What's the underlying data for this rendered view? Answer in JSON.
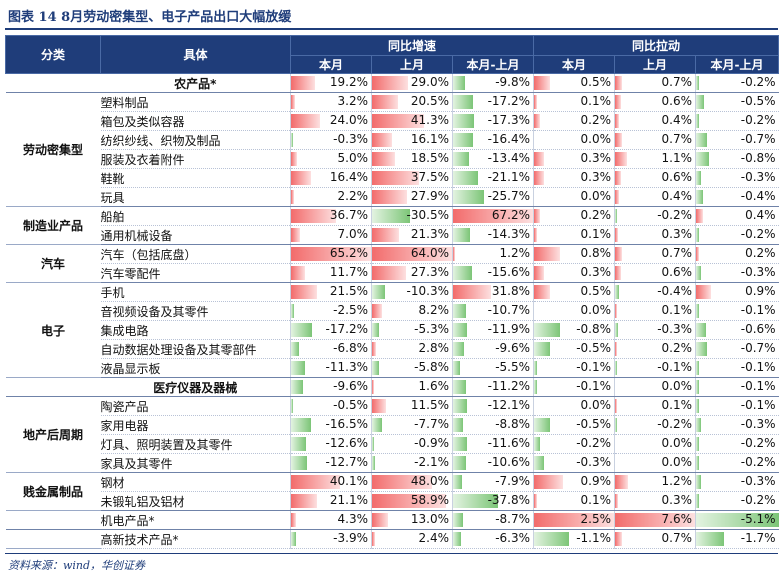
{
  "title": "图表 14   8月劳动密集型、电子产品出口大幅放缓",
  "source": "资料来源：wind，华创证券",
  "headers": {
    "category": "分类",
    "item": "具体",
    "group_growth": "同比增速",
    "group_pull": "同比拉动",
    "sub": [
      "本月",
      "上月",
      "本月-上月",
      "本月",
      "上月",
      "本月-上月"
    ]
  },
  "colors": {
    "header_bg": "#1f3d7a",
    "positive_bar": "#f26b6b",
    "negative_bar": "#7cc577"
  },
  "rows": [
    {
      "cat": "",
      "item": "农产品*",
      "bold": true,
      "v": [
        "19.2%",
        "29.0%",
        "-9.8%",
        "0.5%",
        "0.7%",
        "-0.2%"
      ],
      "n": [
        19.2,
        29.0,
        -9.8,
        0.5,
        0.7,
        -0.2
      ]
    },
    {
      "cat": "劳动密集型",
      "item": "塑料制品",
      "v": [
        "3.2%",
        "20.5%",
        "-17.2%",
        "0.1%",
        "0.6%",
        "-0.5%"
      ],
      "n": [
        3.2,
        20.5,
        -17.2,
        0.1,
        0.6,
        -0.5
      ]
    },
    {
      "cat": "",
      "item": "箱包及类似容器",
      "v": [
        "24.0%",
        "41.3%",
        "-17.3%",
        "0.2%",
        "0.4%",
        "-0.2%"
      ],
      "n": [
        24.0,
        41.3,
        -17.3,
        0.2,
        0.4,
        -0.2
      ]
    },
    {
      "cat": "",
      "item": "纺织纱线、织物及制品",
      "v": [
        "-0.3%",
        "16.1%",
        "-16.4%",
        "0.0%",
        "0.7%",
        "-0.7%"
      ],
      "n": [
        -0.3,
        16.1,
        -16.4,
        0.0,
        0.7,
        -0.7
      ]
    },
    {
      "cat": "",
      "item": "服装及衣着附件",
      "v": [
        "5.0%",
        "18.5%",
        "-13.4%",
        "0.3%",
        "1.1%",
        "-0.8%"
      ],
      "n": [
        5.0,
        18.5,
        -13.4,
        0.3,
        1.1,
        -0.8
      ]
    },
    {
      "cat": "",
      "item": "鞋靴",
      "v": [
        "16.4%",
        "37.5%",
        "-21.1%",
        "0.3%",
        "0.6%",
        "-0.3%"
      ],
      "n": [
        16.4,
        37.5,
        -21.1,
        0.3,
        0.6,
        -0.3
      ]
    },
    {
      "cat": "",
      "item": "玩具",
      "v": [
        "2.2%",
        "27.9%",
        "-25.7%",
        "0.0%",
        "0.4%",
        "-0.4%"
      ],
      "n": [
        2.2,
        27.9,
        -25.7,
        0.0,
        0.4,
        -0.4
      ]
    },
    {
      "cat": "制造业产品",
      "item": "船舶",
      "v": [
        "36.7%",
        "-30.5%",
        "67.2%",
        "0.2%",
        "-0.2%",
        "0.4%"
      ],
      "n": [
        36.7,
        -30.5,
        67.2,
        0.2,
        -0.2,
        0.4
      ]
    },
    {
      "cat": "",
      "item": "通用机械设备",
      "v": [
        "7.0%",
        "21.3%",
        "-14.3%",
        "0.1%",
        "0.3%",
        "-0.2%"
      ],
      "n": [
        7.0,
        21.3,
        -14.3,
        0.1,
        0.3,
        -0.2
      ]
    },
    {
      "cat": "汽车",
      "item": "汽车（包括底盘）",
      "v": [
        "65.2%",
        "64.0%",
        "1.2%",
        "0.8%",
        "0.7%",
        "0.2%"
      ],
      "n": [
        65.2,
        64.0,
        1.2,
        0.8,
        0.7,
        0.2
      ]
    },
    {
      "cat": "",
      "item": "汽车零配件",
      "v": [
        "11.7%",
        "27.3%",
        "-15.6%",
        "0.3%",
        "0.6%",
        "-0.3%"
      ],
      "n": [
        11.7,
        27.3,
        -15.6,
        0.3,
        0.6,
        -0.3
      ]
    },
    {
      "cat": "电子",
      "item": "手机",
      "v": [
        "21.5%",
        "-10.3%",
        "31.8%",
        "0.5%",
        "-0.4%",
        "0.9%"
      ],
      "n": [
        21.5,
        -10.3,
        31.8,
        0.5,
        -0.4,
        0.9
      ]
    },
    {
      "cat": "",
      "item": "音视频设备及其零件",
      "v": [
        "-2.5%",
        "8.2%",
        "-10.7%",
        "0.0%",
        "0.1%",
        "-0.1%"
      ],
      "n": [
        -2.5,
        8.2,
        -10.7,
        0.0,
        0.1,
        -0.1
      ]
    },
    {
      "cat": "",
      "item": "集成电路",
      "v": [
        "-17.2%",
        "-5.3%",
        "-11.9%",
        "-0.8%",
        "-0.3%",
        "-0.6%"
      ],
      "n": [
        -17.2,
        -5.3,
        -11.9,
        -0.8,
        -0.3,
        -0.6
      ]
    },
    {
      "cat": "",
      "item": "自动数据处理设备及其零部件",
      "v": [
        "-6.8%",
        "2.8%",
        "-9.6%",
        "-0.5%",
        "0.2%",
        "-0.7%"
      ],
      "n": [
        -6.8,
        2.8,
        -9.6,
        -0.5,
        0.2,
        -0.7
      ]
    },
    {
      "cat": "",
      "item": "液晶显示板",
      "v": [
        "-11.3%",
        "-5.8%",
        "-5.5%",
        "-0.1%",
        "-0.1%",
        "-0.1%"
      ],
      "n": [
        -11.3,
        -5.8,
        -5.5,
        -0.1,
        -0.1,
        -0.1
      ]
    },
    {
      "cat": "",
      "item": "医疗仪器及器械",
      "bold": true,
      "v": [
        "-9.6%",
        "1.6%",
        "-11.2%",
        "-0.1%",
        "0.0%",
        "-0.1%"
      ],
      "n": [
        -9.6,
        1.6,
        -11.2,
        -0.1,
        0.0,
        -0.1
      ]
    },
    {
      "cat": "地产后周期",
      "item": "陶瓷产品",
      "v": [
        "-0.5%",
        "11.5%",
        "-12.1%",
        "0.0%",
        "0.1%",
        "-0.1%"
      ],
      "n": [
        -0.5,
        11.5,
        -12.1,
        0.0,
        0.1,
        -0.1
      ]
    },
    {
      "cat": "",
      "item": "家用电器",
      "v": [
        "-16.5%",
        "-7.7%",
        "-8.8%",
        "-0.5%",
        "-0.2%",
        "-0.3%"
      ],
      "n": [
        -16.5,
        -7.7,
        -8.8,
        -0.5,
        -0.2,
        -0.3
      ]
    },
    {
      "cat": "",
      "item": "灯具、照明装置及其零件",
      "v": [
        "-12.6%",
        "-0.9%",
        "-11.6%",
        "-0.2%",
        "0.0%",
        "-0.2%"
      ],
      "n": [
        -12.6,
        -0.9,
        -11.6,
        -0.2,
        0.0,
        -0.2
      ]
    },
    {
      "cat": "",
      "item": "家具及其零件",
      "v": [
        "-12.7%",
        "-2.1%",
        "-10.6%",
        "-0.3%",
        "0.0%",
        "-0.2%"
      ],
      "n": [
        -12.7,
        -2.1,
        -10.6,
        -0.3,
        0.0,
        -0.2
      ]
    },
    {
      "cat": "贱金属制品",
      "item": "钢材",
      "v": [
        "40.1%",
        "48.0%",
        "-7.9%",
        "0.9%",
        "1.2%",
        "-0.3%"
      ],
      "n": [
        40.1,
        48.0,
        -7.9,
        0.9,
        1.2,
        -0.3
      ]
    },
    {
      "cat": "",
      "item": "未锻轧铝及铝材",
      "v": [
        "21.1%",
        "58.9%",
        "-37.8%",
        "0.1%",
        "0.3%",
        "-0.2%"
      ],
      "n": [
        21.1,
        58.9,
        -37.8,
        0.1,
        0.3,
        -0.2
      ]
    },
    {
      "cat": "",
      "item": "机电产品*",
      "v": [
        "4.3%",
        "13.0%",
        "-8.7%",
        "2.5%",
        "7.6%",
        "-5.1%"
      ],
      "n": [
        4.3,
        13.0,
        -8.7,
        2.5,
        7.6,
        -5.1
      ]
    },
    {
      "cat": "",
      "item": "高新技术产品*",
      "v": [
        "-3.9%",
        "2.4%",
        "-6.3%",
        "-1.1%",
        "0.7%",
        "-1.7%"
      ],
      "n": [
        -3.9,
        2.4,
        -6.3,
        -1.1,
        0.7,
        -1.7
      ]
    }
  ]
}
